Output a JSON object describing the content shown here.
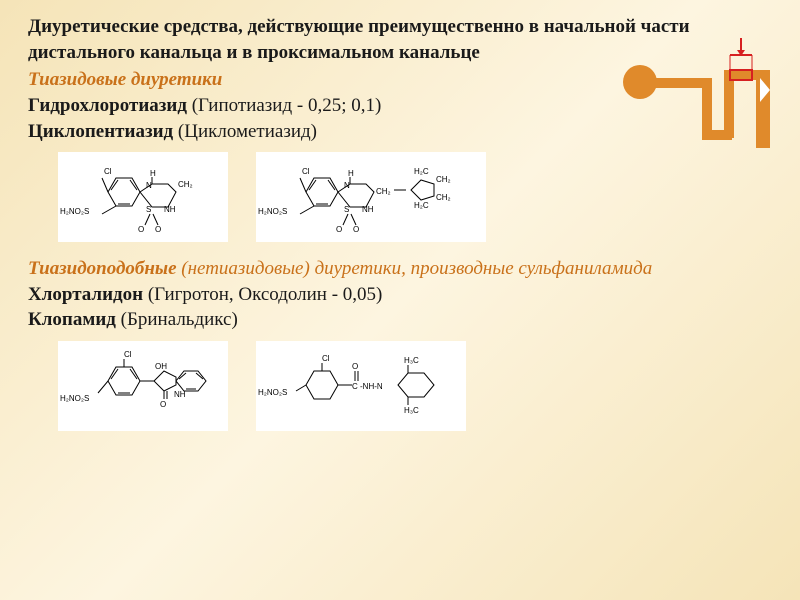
{
  "title": "Диуретические средства, действующие преимущественно в начальной части дистального канальца и в проксимальном канальце",
  "group1": {
    "heading": "Тиазидовые диуретики",
    "heading_color": "#c9711a",
    "drugs": [
      {
        "name": "Гидрохлоротиазид",
        "brand": "(Гипотиазид - 0,25; 0,1)"
      },
      {
        "name": "Циклопентиазид",
        "brand": "(Циклометиазид)"
      }
    ]
  },
  "group2": {
    "heading": "Тиазидоподобные (нетиазидовые) диуретики, производные сульфаниламида",
    "heading_italic_part": "(нетиазидовые) диуретики, производные сульфаниламида",
    "heading_color": "#c9711a",
    "drugs": [
      {
        "name": "Хлорталидон",
        "brand": "(Гигротон, Оксодолин - 0,05)"
      },
      {
        "name": "Клопамид",
        "brand": "(Бринальдикс)"
      }
    ]
  },
  "diagram": {
    "bg_color": "#e08a2b",
    "highlight_color": "#d62020",
    "arrow_color": "#d62020"
  },
  "chem": {
    "box_bg": "#ffffff",
    "line_color": "#000000"
  }
}
